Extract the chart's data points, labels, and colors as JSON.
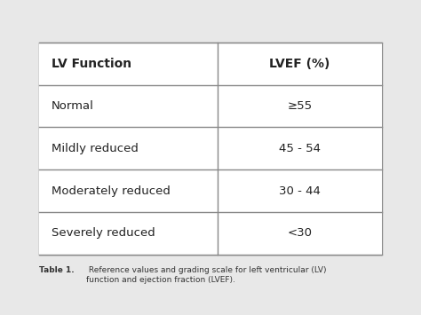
{
  "col1_header": "LV Function",
  "col2_header": "LVEF (%)",
  "rows": [
    [
      "Normal",
      "≥55"
    ],
    [
      "Mildly reduced",
      "45 - 54"
    ],
    [
      "Moderately reduced",
      "30 - 44"
    ],
    [
      "Severely reduced",
      "<30"
    ]
  ],
  "caption_bold": "Table 1.",
  "caption_text": " Reference values and grading scale for left ventricular (LV)\nfunction and ejection fraction (LVEF).",
  "bg_color": "#e8e8e8",
  "table_bg": "#ffffff",
  "border_color": "#888888",
  "header_color": "#ffffff",
  "row_colors": [
    "#ffffff",
    "#ffffff",
    "#ffffff",
    "#ffffff"
  ],
  "text_color": "#222222",
  "caption_color": "#333333"
}
